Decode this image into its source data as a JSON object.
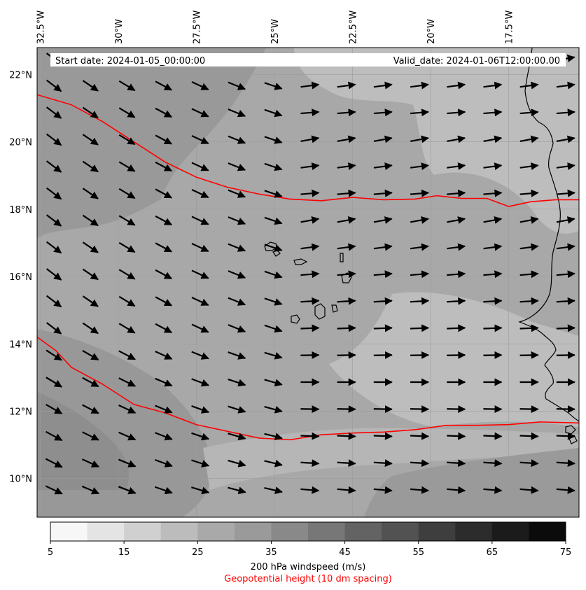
{
  "map": {
    "lon_labels": [
      "32.5°W",
      "30°W",
      "27.5°W",
      "25°W",
      "22.5°W",
      "20°W",
      "17.5°W"
    ],
    "lon_values": [
      -32.5,
      -30,
      -27.5,
      -25,
      -22.5,
      -20,
      -17.5
    ],
    "lat_labels": [
      "22°N",
      "20°N",
      "18°N",
      "16°N",
      "14°N",
      "12°N",
      "10°N"
    ],
    "lat_values": [
      22,
      20,
      18,
      16,
      14,
      12,
      10
    ],
    "extent": {
      "lon_min": -32.6,
      "lon_max": -15.25,
      "lat_min": 8.85,
      "lat_max": 22.8
    },
    "start_date_label": "Start date: 2024-01-05_00:00:00",
    "valid_date_label": "Valid_date: 2024-01-06T12:00:00.00",
    "colors": {
      "background_field": "#a8a8a8",
      "contour": "#ff0000",
      "arrows": "#000000",
      "coastline": "#000000"
    }
  },
  "colorbar": {
    "ticks": [
      "5",
      "15",
      "25",
      "35",
      "45",
      "55",
      "65",
      "75"
    ],
    "levels": [
      5,
      10,
      15,
      20,
      25,
      30,
      35,
      40,
      45,
      50,
      55,
      60,
      65,
      70,
      75
    ],
    "colors": [
      "#f7f7f7",
      "#e4e4e4",
      "#d0d0d0",
      "#bcbcbc",
      "#a9a9a9",
      "#9a9a9a",
      "#898989",
      "#777777",
      "#636363",
      "#525252",
      "#3e3e3e",
      "#2c2c2c",
      "#1b1b1b",
      "#0b0b0b"
    ],
    "label": "200 hPa windspeed (m/s)",
    "contour_label": "Geopotential height (10 dm spacing)"
  },
  "contours": [
    {
      "points": [
        [
          -32.6,
          21.4
        ],
        [
          -31.5,
          21.1
        ],
        [
          -30.5,
          20.6
        ],
        [
          -29.5,
          20.0
        ],
        [
          -28.5,
          19.4
        ],
        [
          -27.5,
          18.95
        ],
        [
          -26.5,
          18.65
        ],
        [
          -25.5,
          18.45
        ],
        [
          -24.5,
          18.3
        ],
        [
          -23.5,
          18.25
        ],
        [
          -22.5,
          18.35
        ],
        [
          -21.5,
          18.28
        ],
        [
          -20.5,
          18.3
        ],
        [
          -19.8,
          18.4
        ],
        [
          -19.0,
          18.32
        ],
        [
          -18.2,
          18.32
        ],
        [
          -17.5,
          18.08
        ],
        [
          -16.8,
          18.22
        ],
        [
          -16.0,
          18.28
        ],
        [
          -15.25,
          18.28
        ]
      ]
    },
    {
      "points": [
        [
          -32.6,
          14.2
        ],
        [
          -32.0,
          13.8
        ],
        [
          -31.5,
          13.3
        ],
        [
          -30.5,
          12.8
        ],
        [
          -29.5,
          12.2
        ],
        [
          -28.5,
          11.95
        ],
        [
          -27.5,
          11.6
        ],
        [
          -26.5,
          11.4
        ],
        [
          -25.5,
          11.2
        ],
        [
          -24.5,
          11.15
        ],
        [
          -23.5,
          11.3
        ],
        [
          -22.5,
          11.35
        ],
        [
          -21.5,
          11.38
        ],
        [
          -20.5,
          11.45
        ],
        [
          -19.5,
          11.58
        ],
        [
          -18.5,
          11.58
        ],
        [
          -17.5,
          11.6
        ],
        [
          -16.5,
          11.68
        ],
        [
          -15.25,
          11.65
        ]
      ]
    }
  ]
}
